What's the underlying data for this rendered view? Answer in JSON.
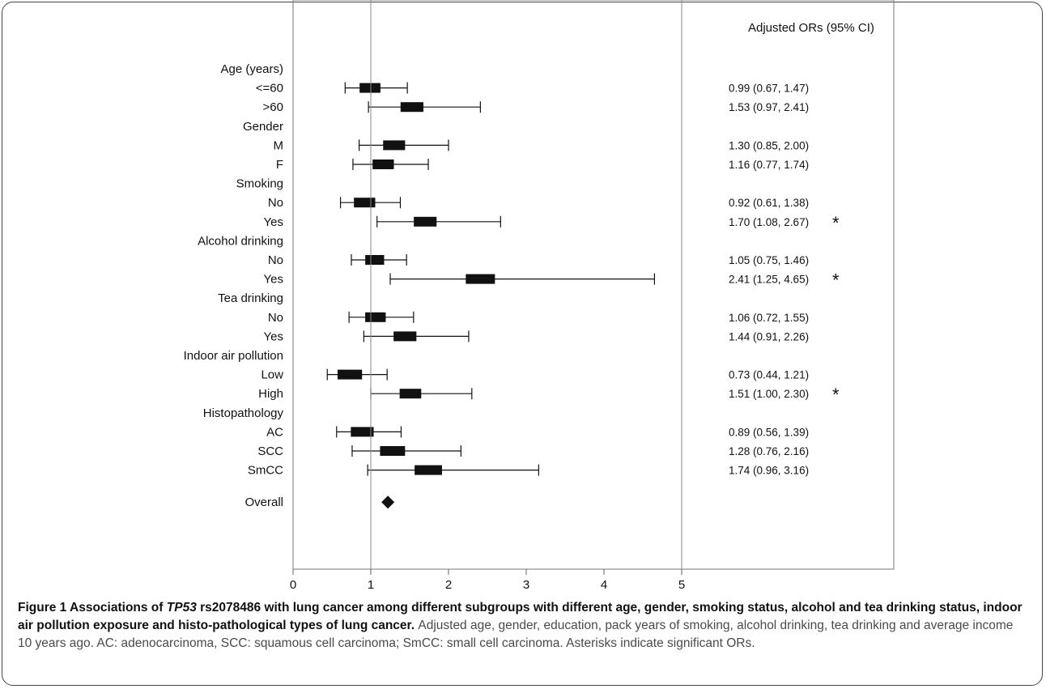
{
  "chart_data": {
    "type": "forest",
    "column_header": "Adjusted ORs (95% CI)",
    "xlim": [
      0,
      5
    ],
    "x_ticks": [
      0,
      1,
      2,
      3,
      4,
      5
    ],
    "reference_line": 1,
    "rows": [
      {
        "label": "Age (years)",
        "kind": "group"
      },
      {
        "label": "<=60",
        "kind": "item",
        "or": 0.99,
        "lo": 0.67,
        "hi": 1.47,
        "text": "0.99 (0.67, 1.47)",
        "sig": false
      },
      {
        "label": ">60",
        "kind": "item",
        "or": 1.53,
        "lo": 0.97,
        "hi": 2.41,
        "text": "1.53 (0.97, 2.41)",
        "sig": false
      },
      {
        "label": "Gender",
        "kind": "group"
      },
      {
        "label": "M",
        "kind": "item",
        "or": 1.3,
        "lo": 0.85,
        "hi": 2.0,
        "text": "1.30 (0.85, 2.00)",
        "sig": false
      },
      {
        "label": "F",
        "kind": "item",
        "or": 1.16,
        "lo": 0.77,
        "hi": 1.74,
        "text": "1.16 (0.77, 1.74)",
        "sig": false
      },
      {
        "label": "Smoking",
        "kind": "group"
      },
      {
        "label": "No",
        "kind": "item",
        "or": 0.92,
        "lo": 0.61,
        "hi": 1.38,
        "text": "0.92 (0.61, 1.38)",
        "sig": false
      },
      {
        "label": "Yes",
        "kind": "item",
        "or": 1.7,
        "lo": 1.08,
        "hi": 2.67,
        "text": "1.70 (1.08, 2.67)",
        "sig": true
      },
      {
        "label": "Alcohol drinking",
        "kind": "group"
      },
      {
        "label": "No",
        "kind": "item",
        "or": 1.05,
        "lo": 0.75,
        "hi": 1.46,
        "text": "1.05 (0.75, 1.46)",
        "sig": false
      },
      {
        "label": "Yes",
        "kind": "item",
        "or": 2.41,
        "lo": 1.25,
        "hi": 4.65,
        "text": "2.41 (1.25, 4.65)",
        "sig": true
      },
      {
        "label": "Tea drinking",
        "kind": "group"
      },
      {
        "label": "No",
        "kind": "item",
        "or": 1.06,
        "lo": 0.72,
        "hi": 1.55,
        "text": "1.06 (0.72, 1.55)",
        "sig": false
      },
      {
        "label": "Yes",
        "kind": "item",
        "or": 1.44,
        "lo": 0.91,
        "hi": 2.26,
        "text": "1.44 (0.91, 2.26)",
        "sig": false
      },
      {
        "label": "Indoor air pollution",
        "kind": "group"
      },
      {
        "label": "Low",
        "kind": "item",
        "or": 0.73,
        "lo": 0.44,
        "hi": 1.21,
        "text": "0.73 (0.44, 1.21)",
        "sig": false
      },
      {
        "label": "High",
        "kind": "item",
        "or": 1.51,
        "lo": 1.0,
        "hi": 2.3,
        "text": "1.51 (1.00, 2.30)",
        "sig": true
      },
      {
        "label": "Histopathology",
        "kind": "group"
      },
      {
        "label": "AC",
        "kind": "item",
        "or": 0.89,
        "lo": 0.56,
        "hi": 1.39,
        "text": "0.89 (0.56, 1.39)",
        "sig": false
      },
      {
        "label": "SCC",
        "kind": "item",
        "or": 1.28,
        "lo": 0.76,
        "hi": 2.16,
        "text": "1.28 (0.76, 2.16)",
        "sig": false
      },
      {
        "label": "SmCC",
        "kind": "item",
        "or": 1.74,
        "lo": 0.96,
        "hi": 3.16,
        "text": "1.74 (0.96, 3.16)",
        "sig": false
      },
      {
        "label": "Overall",
        "kind": "overall",
        "or": 1.22
      }
    ],
    "significance_marker": "*"
  },
  "caption": {
    "figure_label": "Figure 1",
    "title_prefix": "Associations of",
    "gene": "TP53",
    "title_rest": "rs2078486 with lung cancer among different subgroups with different age, gender, smoking status, alcohol and tea drinking status, indoor air pollution exposure and histo-pathological types of lung cancer.",
    "description": "Adjusted age, gender, education, pack years of smoking, alcohol drinking, tea drinking and average income 10 years ago. AC: adenocarcinoma, SCC: squamous cell carcinoma; SmCC: small cell carcinoma. Asterisks indicate significant ORs."
  }
}
